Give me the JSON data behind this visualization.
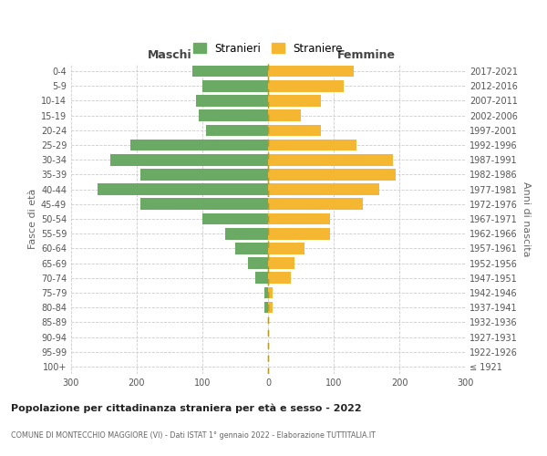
{
  "age_groups": [
    "100+",
    "95-99",
    "90-94",
    "85-89",
    "80-84",
    "75-79",
    "70-74",
    "65-69",
    "60-64",
    "55-59",
    "50-54",
    "45-49",
    "40-44",
    "35-39",
    "30-34",
    "25-29",
    "20-24",
    "15-19",
    "10-14",
    "5-9",
    "0-4"
  ],
  "birth_years": [
    "≤ 1921",
    "1922-1926",
    "1927-1931",
    "1932-1936",
    "1937-1941",
    "1942-1946",
    "1947-1951",
    "1952-1956",
    "1957-1961",
    "1962-1966",
    "1967-1971",
    "1972-1976",
    "1977-1981",
    "1982-1986",
    "1987-1991",
    "1992-1996",
    "1997-2001",
    "2002-2006",
    "2007-2011",
    "2012-2016",
    "2017-2021"
  ],
  "males": [
    0,
    0,
    0,
    0,
    5,
    5,
    20,
    30,
    50,
    65,
    100,
    195,
    260,
    195,
    240,
    210,
    95,
    105,
    110,
    100,
    115
  ],
  "females": [
    0,
    0,
    0,
    0,
    7,
    7,
    35,
    40,
    55,
    95,
    95,
    145,
    170,
    195,
    190,
    135,
    80,
    50,
    80,
    115,
    130
  ],
  "male_color": "#6aaa64",
  "female_color": "#f5b731",
  "background_color": "#ffffff",
  "grid_color": "#cccccc",
  "title": "Popolazione per cittadinanza straniera per età e sesso - 2022",
  "subtitle": "COMUNE DI MONTECCHIO MAGGIORE (VI) - Dati ISTAT 1° gennaio 2022 - Elaborazione TUTTITALIA.IT",
  "ylabel_left": "Fasce di età",
  "ylabel_right": "Anni di nascita",
  "xlabel_left": "Maschi",
  "xlabel_right": "Femmine",
  "legend_male": "Stranieri",
  "legend_female": "Straniere",
  "xlim": 300,
  "dashed_line_color_dark": "#888888",
  "dashed_line_color_gold": "#c8a800"
}
